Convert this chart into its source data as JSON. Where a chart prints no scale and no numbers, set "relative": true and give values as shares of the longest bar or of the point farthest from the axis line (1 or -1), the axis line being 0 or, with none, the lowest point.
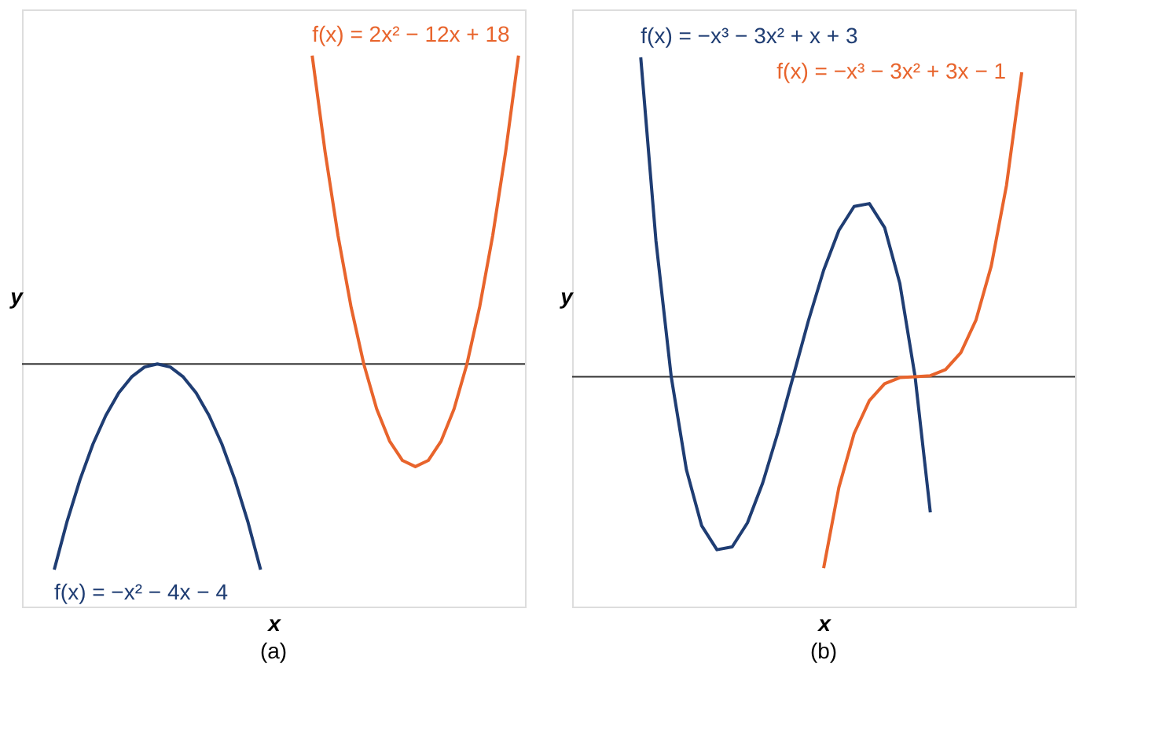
{
  "chart_data": [
    {
      "type": "line",
      "relative": true,
      "title": "(a)",
      "xlabel": "x",
      "ylabel": "y",
      "grid": false,
      "legend": false,
      "categories": [
        null,
        null,
        null,
        null,
        null,
        null,
        null,
        null,
        null,
        null,
        null,
        null,
        null,
        null,
        null,
        null,
        null,
        null,
        null,
        null,
        null,
        null,
        null,
        null,
        null,
        null,
        null,
        null,
        null,
        null,
        null,
        null,
        null,
        null,
        null,
        null,
        null,
        null,
        null
      ],
      "series": [
        {
          "name": "f(x) = −x² − 4x − 4",
          "color": "#1f3d73",
          "values": [
            null,
            null,
            -0.667,
            -0.51,
            -0.375,
            -0.26,
            -0.167,
            -0.094,
            -0.042,
            -0.01,
            0,
            -0.01,
            -0.042,
            -0.094,
            -0.167,
            -0.26,
            -0.375,
            -0.51,
            -0.667,
            null,
            null,
            null,
            null,
            null,
            null,
            null,
            null,
            null,
            null,
            null,
            null,
            null,
            null,
            null,
            null,
            null,
            null,
            null,
            null
          ]
        },
        {
          "name": "f(x) = 2x² − 12x + 18",
          "color": "#e8642c",
          "values": [
            null,
            null,
            null,
            null,
            null,
            null,
            null,
            null,
            null,
            null,
            null,
            null,
            null,
            null,
            null,
            null,
            null,
            null,
            null,
            null,
            null,
            null,
            1,
            0.688,
            0.417,
            0.188,
            0,
            -0.146,
            -0.25,
            -0.313,
            -0.333,
            -0.313,
            -0.25,
            -0.146,
            0,
            0.188,
            0.417,
            0.688,
            1
          ]
        }
      ]
    },
    {
      "type": "line",
      "relative": true,
      "title": "(b)",
      "xlabel": "x",
      "ylabel": "y",
      "grid": false,
      "legend": false,
      "categories": [
        null,
        null,
        null,
        null,
        null,
        null,
        null,
        null,
        null,
        null,
        null,
        null,
        null,
        null,
        null,
        null,
        null,
        null,
        null,
        null,
        null,
        null,
        null,
        null,
        null,
        null,
        null,
        null,
        null,
        null,
        null,
        null,
        null
      ],
      "series": [
        {
          "name": "f(x) = −x³ − 3x² + x + 3",
          "color": "#1f3d73",
          "values": [
            null,
            null,
            null,
            null,
            1,
            0.425,
            0,
            -0.292,
            -0.467,
            -0.542,
            -0.533,
            -0.458,
            -0.333,
            -0.175,
            0,
            0.175,
            0.333,
            0.458,
            0.533,
            0.542,
            0.467,
            0.292,
            0,
            -0.425,
            null,
            null,
            null,
            null,
            null,
            null,
            null,
            null,
            null
          ]
        },
        {
          "name": "f(x) = −x³ − 3x² + 3x − 1",
          "color": "#e8642c",
          "values": [
            null,
            null,
            null,
            null,
            null,
            null,
            null,
            null,
            null,
            null,
            null,
            null,
            null,
            null,
            null,
            null,
            -0.6,
            -0.347,
            -0.178,
            -0.075,
            -0.022,
            -0.003,
            0,
            0.003,
            0.022,
            0.075,
            0.178,
            0.347,
            0.6,
            0.953,
            null,
            null,
            null
          ]
        }
      ]
    }
  ]
}
